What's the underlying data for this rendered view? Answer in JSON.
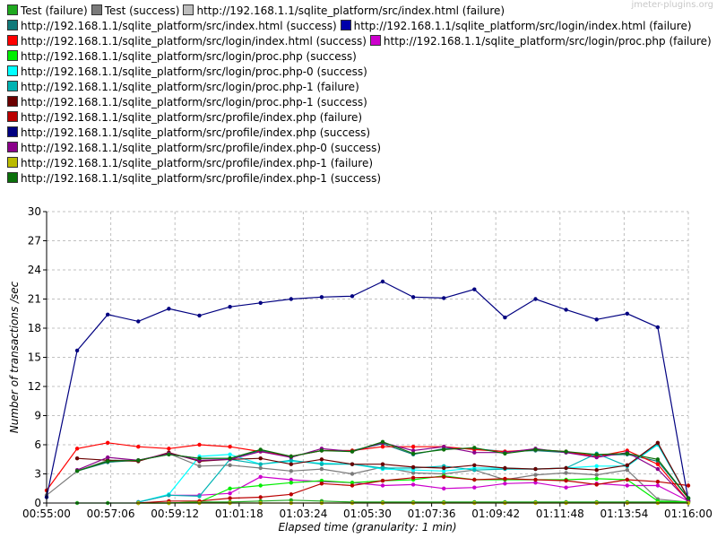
{
  "watermark": "jmeter-plugins.org",
  "chart_data": {
    "type": "line",
    "xlabel": "Elapsed time (granularity: 1 min)",
    "ylabel": "Number of transactions /sec",
    "ylim": [
      0,
      30
    ],
    "yticks": [
      "0",
      "3",
      "6",
      "9",
      "12",
      "15",
      "18",
      "21",
      "24",
      "27",
      "30"
    ],
    "xlim": [
      0,
      21
    ],
    "xticks": [
      "00:55:00",
      "00:57:06",
      "00:59:12",
      "01:01:18",
      "01:03:24",
      "01:05:30",
      "01:07:36",
      "01:09:42",
      "01:11:48",
      "01:13:54",
      "01:16:00"
    ],
    "x": [
      0,
      1,
      2,
      3,
      4,
      5,
      6,
      7,
      8,
      9,
      10,
      11,
      12,
      13,
      14,
      15,
      16,
      17,
      18,
      19,
      20,
      21
    ],
    "grid": true,
    "legend_position": "top",
    "series": [
      {
        "name": "Test (failure)",
        "color": "#1fa91f",
        "values": [
          null,
          0.0,
          0.0,
          0.0,
          0.0,
          0.1,
          0.1,
          0.2,
          0.3,
          0.2,
          0.1,
          0.1,
          0.1,
          0.1,
          0.1,
          0.1,
          0.1,
          0.1,
          0.1,
          0.1,
          0.1,
          0.1
        ]
      },
      {
        "name": "Test (success)",
        "color": "#7a7a7a",
        "values": [
          0.8,
          3.3,
          4.4,
          4.4,
          5.1,
          3.8,
          3.9,
          3.6,
          3.3,
          3.5,
          3.0,
          3.7,
          3.1,
          3.0,
          3.4,
          2.4,
          2.9,
          3.1,
          2.9,
          3.4,
          0.4,
          0.1
        ]
      },
      {
        "name": "http://192.168.1.1/sqlite_platform/src/index.html (failure)",
        "color": "#bdbdbd",
        "values": [
          null,
          null,
          null,
          null,
          null,
          null,
          null,
          null,
          null,
          null,
          null,
          null,
          null,
          null,
          null,
          null,
          null,
          null,
          null,
          null,
          null,
          null
        ]
      },
      {
        "name": "http://192.168.1.1/sqlite_platform/src/index.html (success)",
        "color": "#117a7a",
        "values": [
          null,
          3.3,
          4.2,
          4.4,
          5.0,
          4.6,
          4.6,
          5.4,
          4.8,
          5.4,
          5.4,
          6.1,
          5.0,
          5.6,
          5.6,
          5.3,
          5.4,
          5.2,
          4.9,
          5.0,
          4.3,
          0.5
        ]
      },
      {
        "name": "http://192.168.1.1/sqlite_platform/src/login/index.html (failure)",
        "color": "#0000aa",
        "values": [
          null,
          null,
          null,
          null,
          null,
          null,
          null,
          null,
          null,
          null,
          null,
          null,
          null,
          null,
          null,
          null,
          null,
          null,
          null,
          null,
          null,
          null
        ]
      },
      {
        "name": "http://192.168.1.1/sqlite_platform/src/login/index.html (success)",
        "color": "#ff0000",
        "values": [
          1.3,
          5.6,
          6.2,
          5.8,
          5.6,
          6.0,
          5.8,
          5.3,
          4.8,
          5.4,
          5.4,
          5.8,
          5.8,
          5.8,
          5.5,
          5.3,
          5.5,
          5.3,
          4.8,
          5.4,
          4.0,
          0.2
        ]
      },
      {
        "name": "http://192.168.1.1/sqlite_platform/src/login/proc.php (failure)",
        "color": "#cc00cc",
        "values": [
          null,
          null,
          null,
          0.1,
          0.8,
          0.8,
          1.0,
          2.7,
          2.4,
          2.2,
          2.1,
          1.8,
          1.9,
          1.5,
          1.6,
          2.0,
          2.1,
          1.6,
          2.0,
          1.8,
          1.8,
          0.2
        ]
      },
      {
        "name": "http://192.168.1.1/sqlite_platform/src/login/proc.php (success)",
        "color": "#00ee00",
        "values": [
          null,
          null,
          null,
          0.0,
          0.0,
          0.1,
          1.5,
          1.8,
          2.1,
          2.3,
          2.1,
          2.3,
          2.4,
          2.8,
          2.4,
          2.4,
          2.4,
          2.4,
          2.5,
          2.4,
          0.2,
          0.1
        ]
      },
      {
        "name": "http://192.168.1.1/sqlite_platform/src/login/proc.php-0 (success)",
        "color": "#00ffff",
        "values": [
          null,
          null,
          null,
          0.1,
          0.9,
          4.8,
          5.0,
          4.0,
          4.3,
          4.1,
          4.0,
          3.5,
          3.4,
          3.3,
          3.6,
          3.6,
          3.5,
          3.6,
          3.8,
          3.8,
          6.0,
          0.5
        ]
      },
      {
        "name": "http://192.168.1.1/sqlite_platform/src/login/proc.php-1 (failure)",
        "color": "#00b3b3",
        "values": [
          null,
          null,
          null,
          0.1,
          0.8,
          0.7,
          4.5,
          4.0,
          4.4,
          4.0,
          4.0,
          3.6,
          3.6,
          3.8,
          3.4,
          3.5,
          3.5,
          3.6,
          5.1,
          3.8,
          6.1,
          0.5
        ]
      },
      {
        "name": "http://192.168.1.1/sqlite_platform/src/login/proc.php-1 (success)",
        "color": "#6b0000",
        "values": [
          null,
          4.6,
          4.4,
          4.3,
          5.2,
          4.3,
          4.5,
          4.6,
          4.0,
          4.5,
          4.0,
          4.0,
          3.7,
          3.6,
          3.9,
          3.6,
          3.5,
          3.6,
          3.4,
          3.9,
          6.2,
          0.5
        ]
      },
      {
        "name": "http://192.168.1.1/sqlite_platform/src/profile/index.php (failure)",
        "color": "#bb0000",
        "values": [
          null,
          null,
          null,
          0.0,
          0.2,
          0.2,
          0.5,
          0.6,
          0.9,
          2.0,
          1.8,
          2.3,
          2.6,
          2.7,
          2.4,
          2.5,
          2.4,
          2.3,
          1.9,
          2.4,
          2.2,
          1.8
        ]
      },
      {
        "name": "http://192.168.1.1/sqlite_platform/src/profile/index.php (success)",
        "color": "#000080",
        "values": [
          0.6,
          15.7,
          19.4,
          18.7,
          20.0,
          19.3,
          20.2,
          20.6,
          21.0,
          21.2,
          21.3,
          22.8,
          21.2,
          21.1,
          22.0,
          19.1,
          21.0,
          19.9,
          18.9,
          19.5,
          18.1,
          0.3
        ]
      },
      {
        "name": "http://192.168.1.1/sqlite_platform/src/profile/index.php-0 (success)",
        "color": "#8b008b",
        "values": [
          null,
          3.4,
          4.7,
          4.4,
          5.1,
          4.4,
          4.5,
          5.3,
          4.7,
          5.6,
          5.3,
          6.2,
          5.4,
          5.8,
          5.2,
          5.2,
          5.6,
          5.2,
          4.7,
          5.2,
          3.5,
          0.2
        ]
      },
      {
        "name": "http://192.168.1.1/sqlite_platform/src/profile/index.php-1 (failure)",
        "color": "#bbbb00",
        "values": [
          null,
          null,
          null,
          0.0,
          0.0,
          0.0,
          0.0,
          0.0,
          0.0,
          0.0,
          0.0,
          0.0,
          0.0,
          0.0,
          0.0,
          0.0,
          0.0,
          0.0,
          0.0,
          0.0,
          0.0,
          0.0
        ]
      },
      {
        "name": "http://192.168.1.1/sqlite_platform/src/profile/index.php-1 (success)",
        "color": "#0a700a",
        "values": [
          null,
          3.3,
          4.3,
          4.4,
          5.0,
          4.6,
          4.6,
          5.5,
          4.8,
          5.4,
          5.3,
          6.3,
          5.1,
          5.5,
          5.7,
          5.1,
          5.5,
          5.3,
          5.0,
          5.1,
          4.5,
          0.5
        ]
      }
    ]
  }
}
